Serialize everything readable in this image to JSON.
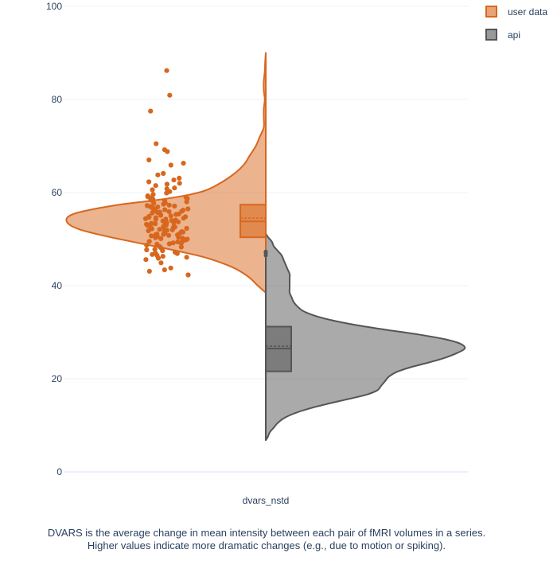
{
  "chart_data": {
    "type": "violin",
    "xlabel": "dvars_nstd",
    "ylim": [
      0,
      100
    ],
    "yticks": [
      0,
      20,
      40,
      60,
      80,
      100
    ],
    "grid": true,
    "legend_placement": "top-right",
    "series": [
      {
        "name": "user data",
        "color": "#d8671e",
        "side": "negative",
        "points": "all",
        "box": {
          "min": 42.2,
          "q1": 50.4,
          "median": 53.8,
          "mean": 54.5,
          "q3": 57.4,
          "max": 66.7
        },
        "density": [
          [
            38.5,
            0.0
          ],
          [
            40.0,
            0.04
          ],
          [
            42.0,
            0.09
          ],
          [
            44.0,
            0.17
          ],
          [
            46.0,
            0.3
          ],
          [
            47.5,
            0.45
          ],
          [
            49.0,
            0.62
          ],
          [
            50.5,
            0.79
          ],
          [
            52.0,
            0.93
          ],
          [
            53.2,
            0.99
          ],
          [
            54.5,
            1.0
          ],
          [
            55.5,
            0.96
          ],
          [
            56.5,
            0.86
          ],
          [
            57.5,
            0.72
          ],
          [
            58.5,
            0.53
          ],
          [
            59.5,
            0.39
          ],
          [
            60.5,
            0.3
          ],
          [
            62.0,
            0.23
          ],
          [
            64.0,
            0.16
          ],
          [
            66.0,
            0.11
          ],
          [
            68.0,
            0.08
          ],
          [
            70.0,
            0.05
          ],
          [
            72.0,
            0.03
          ],
          [
            74.0,
            0.01
          ],
          [
            76.0,
            0.01
          ],
          [
            78.0,
            0.01
          ],
          [
            80.0,
            0.005
          ],
          [
            82.0,
            0.01
          ],
          [
            84.0,
            0.01
          ],
          [
            86.0,
            0.005
          ],
          [
            88.0,
            0.003
          ],
          [
            90.0,
            0.0
          ]
        ],
        "jitter_values": [
          86.2,
          80.9,
          77.5,
          70.5,
          69.2,
          68.8,
          67.0,
          66.3,
          65.9,
          64.1,
          63.8,
          63.1,
          62.7,
          62.3,
          61.8,
          61.5,
          61.0,
          60.6,
          60.2,
          59.9,
          59.6,
          59.3,
          59.0,
          58.7,
          58.4,
          58.2,
          58.0,
          57.7,
          57.5,
          57.3,
          57.1,
          56.9,
          56.7,
          56.5,
          56.3,
          56.1,
          55.9,
          55.8,
          55.6,
          55.4,
          55.2,
          55.1,
          54.9,
          54.8,
          54.6,
          54.5,
          54.3,
          54.2,
          54.0,
          53.9,
          53.7,
          53.6,
          53.4,
          53.3,
          53.1,
          53.0,
          52.9,
          52.7,
          52.6,
          52.4,
          52.3,
          52.1,
          52.0,
          51.9,
          51.7,
          51.6,
          51.4,
          51.3,
          51.1,
          51.0,
          50.9,
          50.7,
          50.6,
          50.4,
          50.2,
          50.0,
          49.8,
          49.6,
          49.4,
          49.2,
          49.0,
          48.7,
          48.4,
          48.1,
          47.8,
          47.5,
          47.2,
          46.9,
          46.5,
          46.1,
          45.6,
          44.9,
          43.8,
          43.4,
          43.1,
          42.3,
          57.8,
          56.2,
          55.0,
          53.8,
          52.5,
          51.2,
          49.9,
          48.9,
          47.7,
          46.7,
          55.3,
          54.1,
          52.8,
          51.5,
          50.3,
          49.1,
          58.6,
          57.2,
          54.7,
          53.2,
          50.8,
          48.3,
          56.0,
          52.2,
          60.8,
          59.1,
          55.7,
          53.5,
          51.8,
          50.1,
          47.0,
          45.9,
          62.0,
          58.9,
          56.6,
          54.4,
          52.0,
          49.5,
          46.3,
          57.0,
          53.0,
          51.0
        ]
      },
      {
        "name": "api",
        "color": "#555555",
        "side": "positive",
        "points": "none",
        "box": {
          "min": 10.8,
          "q1": 21.6,
          "median": 26.5,
          "mean": 27.0,
          "q3": 31.2,
          "max": 46.2
        },
        "outliers": [
          46.5,
          47.0,
          47.3
        ],
        "density": [
          [
            6.8,
            0.0
          ],
          [
            7.5,
            0.01
          ],
          [
            8.5,
            0.02
          ],
          [
            9.5,
            0.04
          ],
          [
            10.5,
            0.06
          ],
          [
            11.5,
            0.09
          ],
          [
            12.5,
            0.14
          ],
          [
            13.5,
            0.21
          ],
          [
            14.5,
            0.3
          ],
          [
            15.5,
            0.4
          ],
          [
            16.5,
            0.5
          ],
          [
            17.5,
            0.56
          ],
          [
            18.5,
            0.58
          ],
          [
            19.5,
            0.6
          ],
          [
            20.5,
            0.62
          ],
          [
            21.5,
            0.66
          ],
          [
            22.5,
            0.73
          ],
          [
            23.5,
            0.82
          ],
          [
            24.5,
            0.9
          ],
          [
            25.5,
            0.96
          ],
          [
            26.5,
            1.0
          ],
          [
            27.5,
            0.98
          ],
          [
            28.5,
            0.9
          ],
          [
            29.5,
            0.77
          ],
          [
            30.5,
            0.61
          ],
          [
            31.5,
            0.46
          ],
          [
            32.5,
            0.34
          ],
          [
            33.5,
            0.25
          ],
          [
            34.5,
            0.19
          ],
          [
            35.5,
            0.16
          ],
          [
            36.5,
            0.14
          ],
          [
            37.5,
            0.13
          ],
          [
            38.5,
            0.12
          ],
          [
            39.5,
            0.12
          ],
          [
            40.5,
            0.12
          ],
          [
            41.5,
            0.12
          ],
          [
            42.5,
            0.12
          ],
          [
            43.5,
            0.11
          ],
          [
            44.5,
            0.1
          ],
          [
            45.5,
            0.09
          ],
          [
            46.5,
            0.08
          ],
          [
            47.5,
            0.06
          ],
          [
            48.5,
            0.04
          ],
          [
            49.5,
            0.03
          ],
          [
            50.5,
            0.01
          ],
          [
            51.2,
            0.0
          ]
        ]
      }
    ]
  },
  "caption": {
    "line1": "DVARS is the average change in mean intensity between each pair of fMRI volumes in a series.",
    "line2": "Higher values indicate more dramatic changes (e.g., due to motion or spiking)."
  }
}
